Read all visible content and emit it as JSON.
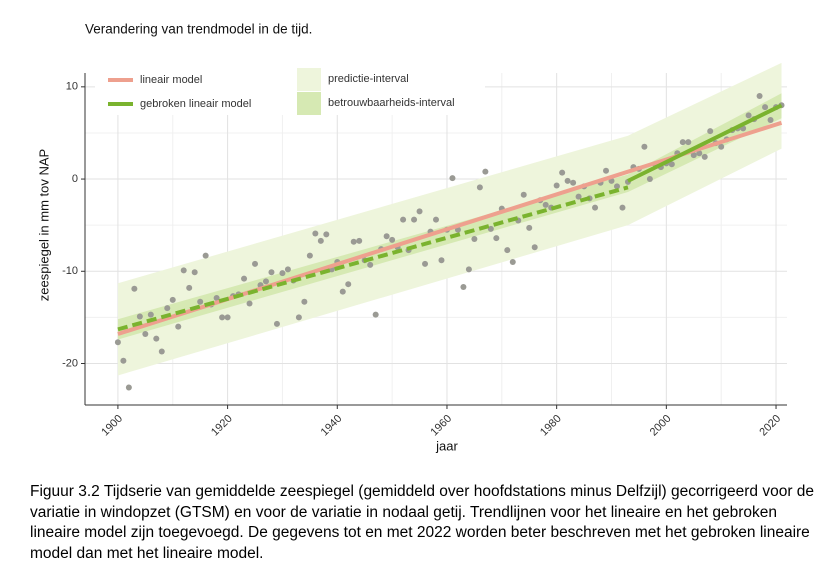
{
  "chart_data": {
    "type": "scatter",
    "title": "Verandering van trendmodel in de tijd.",
    "x_label": "jaar",
    "y_label": "zeespiegel in mm tov NAP",
    "color": "#9a9a94",
    "x": [
      1900,
      1901,
      1902,
      1903,
      1904,
      1905,
      1906,
      1907,
      1908,
      1909,
      1910,
      1911,
      1912,
      1913,
      1914,
      1915,
      1916,
      1917,
      1918,
      1919,
      1920,
      1921,
      1922,
      1923,
      1924,
      1925,
      1926,
      1927,
      1928,
      1929,
      1930,
      1931,
      1932,
      1933,
      1934,
      1935,
      1936,
      1937,
      1938,
      1939,
      1940,
      1941,
      1942,
      1943,
      1944,
      1945,
      1946,
      1947,
      1948,
      1949,
      1950,
      1951,
      1952,
      1953,
      1954,
      1955,
      1956,
      1957,
      1958,
      1959,
      1960,
      1961,
      1962,
      1963,
      1964,
      1965,
      1966,
      1967,
      1968,
      1969,
      1970,
      1971,
      1972,
      1973,
      1974,
      1975,
      1976,
      1977,
      1978,
      1979,
      1980,
      1981,
      1982,
      1983,
      1984,
      1985,
      1986,
      1987,
      1988,
      1989,
      1990,
      1991,
      1992,
      1993,
      1994,
      1995,
      1996,
      1997,
      1998,
      1999,
      2000,
      2001,
      2002,
      2003,
      2004,
      2005,
      2006,
      2007,
      2008,
      2009,
      2010,
      2011,
      2012,
      2013,
      2014,
      2015,
      2016,
      2017,
      2018,
      2019,
      2020,
      2021
    ],
    "values": [
      -17.7,
      -19.7,
      -22.6,
      -11.9,
      -14.9,
      -16.8,
      -14.7,
      -17.3,
      -18.7,
      -14.0,
      -13.1,
      -16.0,
      -9.9,
      -11.8,
      -10.1,
      -13.3,
      -8.3,
      -13.6,
      -12.9,
      -15.0,
      -15.0,
      -12.7,
      -12.5,
      -10.8,
      -13.5,
      -9.2,
      -11.5,
      -11.1,
      -10.1,
      -15.7,
      -10.2,
      -9.8,
      -11.0,
      -15.0,
      -13.3,
      -8.3,
      -5.9,
      -6.7,
      -6.0,
      -9.8,
      -9.0,
      -12.2,
      -11.4,
      -6.8,
      -6.7,
      -8.8,
      -9.3,
      -14.7,
      -7.6,
      -6.2,
      -6.6,
      -7.4,
      -4.4,
      -7.7,
      -4.4,
      -3.5,
      -9.2,
      -5.7,
      -4.4,
      -8.8,
      -5.5,
      0.1,
      -5.5,
      -11.7,
      -9.8,
      -6.5,
      -0.9,
      0.8,
      -5.4,
      -6.4,
      -3.2,
      -7.7,
      -9.0,
      -4.5,
      -1.7,
      -5.3,
      -7.4,
      -2.3,
      -2.8,
      -3.1,
      -0.7,
      0.7,
      -0.2,
      -0.4,
      -1.9,
      -0.8,
      -2.1,
      -3.1,
      -0.4,
      0.9,
      -0.2,
      -0.8,
      -3.1,
      -0.3,
      1.3,
      1.1,
      3.5,
      0.0,
      1.6,
      1.3,
      1.7,
      1.6,
      2.8,
      4.0,
      4.0,
      2.6,
      2.8,
      2.4,
      5.2,
      3.9,
      3.5,
      4.3,
      5.3,
      5.5,
      5.5,
      6.9,
      6.5,
      9.0,
      7.8,
      6.4,
      7.8,
      8.0
    ],
    "bands": [
      {
        "name": "predictie-interval",
        "color": "#eef5dc",
        "x": [
          1900,
          1993,
          2021
        ],
        "lower": [
          -21.3,
          -5.0,
          3.3
        ],
        "upper": [
          -11.3,
          4.7,
          12.6
        ]
      },
      {
        "name": "betrouwbaarheids-interval",
        "color": "#d6e9b3",
        "x": [
          1900,
          1993,
          2021
        ],
        "lower": [
          -17.4,
          -1.4,
          6.6
        ],
        "upper": [
          -15.2,
          0.5,
          9.3
        ]
      }
    ],
    "lines": [
      {
        "name": "lineair model",
        "color": "#eea08e",
        "x": [
          1900,
          2021
        ],
        "values": [
          -16.8,
          6.1
        ]
      },
      {
        "name": "gebroken lineair model",
        "color": "#7ab32e",
        "x": [
          1900,
          1993,
          1993,
          1993,
          2021
        ],
        "values": [
          -16.3,
          -0.9,
          null,
          -0.2,
          8.0
        ]
      }
    ],
    "xlim": [
      1894,
      2022
    ],
    "ylim": [
      -24.5,
      11.5
    ],
    "xticks": [
      1900,
      1920,
      1940,
      1960,
      1980,
      2000,
      2020
    ],
    "yticks": [
      -20,
      -10,
      0,
      10
    ],
    "grid": true,
    "legend": "top-left"
  },
  "caption": "Figuur 3.2 Tijdserie van gemiddelde zeespiegel (gemiddeld over hoofdstations minus Delfzijl) gecorrigeerd voor de variatie in windopzet (GTSM) en voor de variatie in nodaal getij. Trendlijnen voor het lineaire en het gebroken lineaire model zijn toegevoegd. De gegevens tot en met 2022 worden beter beschreven met het gebroken lineaire model dan met het lineaire model."
}
